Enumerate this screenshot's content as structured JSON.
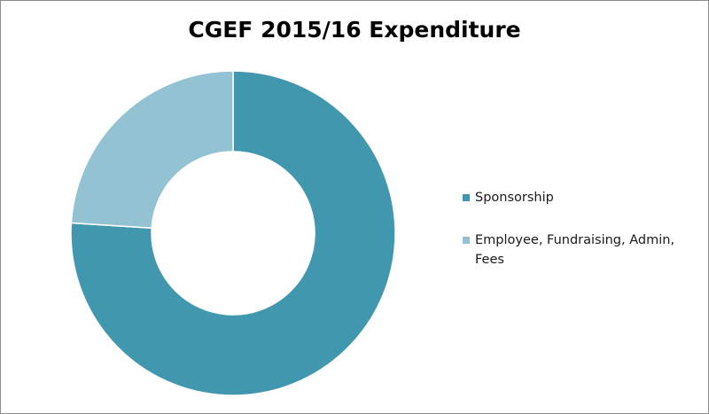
{
  "chart_data": {
    "type": "pie",
    "title": "CGEF 2015/16 Expenditure",
    "donut": true,
    "categories": [
      "Sponsorship",
      "Employee, Fundraising, Admin, Fees"
    ],
    "values": [
      76,
      24
    ],
    "colors": [
      "#4198ae",
      "#93c3d3"
    ],
    "legend_position": "right"
  }
}
